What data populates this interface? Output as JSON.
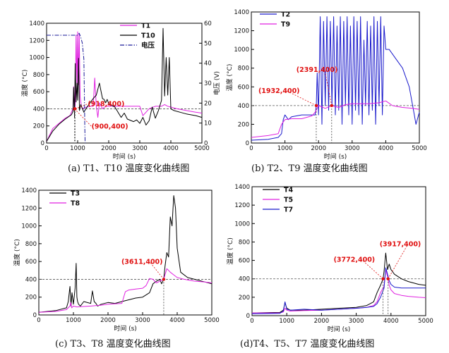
{
  "chart_data": [
    {
      "type": "line",
      "caption": "(a) T1、T10 温度变化曲线图",
      "xlabel": "时间 (s)",
      "ylabel": "温度 (°C)",
      "y2label": "电压 (V)",
      "xlim": [
        0,
        5000
      ],
      "ylim": [
        0,
        1400
      ],
      "y2lim": [
        0,
        60
      ],
      "xticks": [
        "0",
        "1000",
        "2000",
        "3000",
        "4000",
        "5000"
      ],
      "yticks": [
        "0",
        "200",
        "400",
        "600",
        "800",
        "1000",
        "1200",
        "1400"
      ],
      "y2ticks": [
        "0",
        "10",
        "20",
        "30",
        "40",
        "50",
        "60"
      ],
      "threshold": 400,
      "series": [
        {
          "name": "T1",
          "color": "#e020e0",
          "axis": "left",
          "x": [
            0,
            200,
            400,
            600,
            750,
            850,
            870,
            900,
            920,
            950,
            980,
            1000,
            1020,
            1050,
            1080,
            1120,
            1150,
            1200,
            1300,
            1400,
            1500,
            1550,
            1600,
            1650,
            1700,
            1800,
            1900,
            2000,
            2200,
            2500,
            2800,
            3000,
            3100,
            3300,
            3500,
            3700,
            3800,
            3900,
            4000,
            4200,
            4500,
            4800,
            5000
          ],
          "y": [
            20,
            170,
            230,
            290,
            320,
            400,
            660,
            380,
            440,
            1260,
            620,
            1300,
            680,
            1280,
            540,
            430,
            400,
            410,
            420,
            430,
            430,
            760,
            430,
            300,
            470,
            400,
            430,
            430,
            430,
            430,
            430,
            430,
            320,
            400,
            430,
            430,
            450,
            430,
            420,
            400,
            380,
            360,
            350
          ]
        },
        {
          "name": "T10",
          "color": "#000000",
          "axis": "left",
          "x": [
            0,
            200,
            400,
            600,
            800,
            850,
            870,
            900,
            920,
            950,
            980,
            1000,
            1030,
            1060,
            1100,
            1200,
            1300,
            1400,
            1500,
            1600,
            1700,
            1800,
            1850,
            1900,
            1950,
            2000,
            2100,
            2200,
            2400,
            2500,
            2600,
            2800,
            2900,
            3000,
            3100,
            3200,
            3300,
            3400,
            3500,
            3600,
            3700,
            3750,
            3800,
            3850,
            3900,
            3950,
            4000,
            4100,
            4300,
            4500,
            4800,
            5000
          ],
          "y": [
            20,
            140,
            220,
            280,
            330,
            370,
            650,
            300,
            930,
            480,
            700,
            500,
            990,
            380,
            450,
            360,
            420,
            470,
            520,
            560,
            700,
            520,
            510,
            470,
            510,
            460,
            440,
            420,
            300,
            350,
            280,
            250,
            270,
            230,
            300,
            210,
            260,
            420,
            290,
            380,
            500,
            1340,
            550,
            1000,
            560,
            1000,
            400,
            380,
            360,
            340,
            320,
            300
          ]
        },
        {
          "name": "电压",
          "color": "#1a1a99",
          "axis": "right",
          "dash": "dashdot",
          "x": [
            0,
            900,
            1000,
            1050,
            1100,
            1150,
            1200,
            1220,
            1230,
            1240
          ],
          "y": [
            54,
            54,
            54,
            55,
            53,
            50,
            42,
            20,
            8,
            0
          ]
        }
      ],
      "annotations": [
        {
          "text": "(918,400)"
        },
        {
          "text": "(900,400)"
        }
      ],
      "annotation_x": [
        918,
        900
      ]
    },
    {
      "type": "line",
      "caption": "(b) T2、T9 温度变化曲线图",
      "xlabel": "时间 (s)",
      "ylabel": "温度 (°C)",
      "xlim": [
        0,
        5000
      ],
      "ylim": [
        0,
        1400
      ],
      "xticks": [
        "0",
        "1000",
        "2000",
        "3000",
        "4000",
        "5000"
      ],
      "yticks": [
        "0",
        "200",
        "400",
        "600",
        "800",
        "1000",
        "1200",
        "1400"
      ],
      "threshold": 400,
      "series": [
        {
          "name": "T2",
          "color": "#1a1acc",
          "x": [
            0,
            500,
            800,
            900,
            950,
            1000,
            1100,
            1200,
            1500,
            1900,
            1932,
            1960,
            2000,
            2050,
            2100,
            2150,
            2200,
            2250,
            2300,
            2350,
            2400,
            2450,
            2500,
            2550,
            2600,
            2650,
            2700,
            2750,
            2800,
            2850,
            2900,
            2950,
            3000,
            3050,
            3100,
            3150,
            3200,
            3250,
            3300,
            3350,
            3400,
            3450,
            3500,
            3550,
            3600,
            3650,
            3700,
            3750,
            3800,
            3850,
            3900,
            3950,
            4000,
            4100,
            4300,
            4500,
            4700,
            4800,
            4850,
            4900,
            5000
          ],
          "y": [
            30,
            40,
            60,
            100,
            250,
            300,
            250,
            280,
            300,
            300,
            400,
            750,
            300,
            1350,
            200,
            1300,
            400,
            1350,
            350,
            1300,
            400,
            1350,
            300,
            1250,
            350,
            1350,
            200,
            1300,
            400,
            1350,
            300,
            1250,
            200,
            1350,
            350,
            1300,
            300,
            1350,
            200,
            1100,
            400,
            1300,
            300,
            1250,
            350,
            1350,
            200,
            1300,
            400,
            1350,
            300,
            1250,
            1000,
            1000,
            900,
            800,
            600,
            400,
            300,
            200,
            330
          ]
        },
        {
          "name": "T9",
          "color": "#e020e0",
          "x": [
            0,
            500,
            800,
            900,
            1000,
            1200,
            1500,
            1800,
            1900,
            2000,
            2200,
            2391,
            2600,
            2800,
            3000,
            3500,
            3800,
            4000,
            4200,
            4500,
            4800,
            5000
          ],
          "y": [
            60,
            80,
            100,
            200,
            250,
            260,
            260,
            290,
            330,
            400,
            370,
            400,
            380,
            410,
            420,
            420,
            430,
            450,
            400,
            380,
            370,
            360
          ]
        }
      ],
      "annotations": [
        {
          "text": "(2391,400)"
        },
        {
          "text": "(1932,400)"
        }
      ],
      "annotation_x": [
        2391,
        1932
      ]
    },
    {
      "type": "line",
      "caption": "(c) T3、T8 温度变化曲线图",
      "xlabel": "时间 (s)",
      "ylabel": "温度 (°C)",
      "xlim": [
        0,
        5000
      ],
      "ylim": [
        0,
        1400
      ],
      "xticks": [
        "0",
        "1000",
        "2000",
        "3000",
        "4000",
        "5000"
      ],
      "yticks": [
        "0",
        "200",
        "400",
        "600",
        "800",
        "1000",
        "1200",
        "1400"
      ],
      "threshold": 400,
      "series": [
        {
          "name": "T3",
          "color": "#000000",
          "x": [
            0,
            500,
            800,
            850,
            900,
            930,
            960,
            1000,
            1050,
            1080,
            1100,
            1120,
            1150,
            1200,
            1300,
            1500,
            1550,
            1600,
            1650,
            1700,
            1800,
            2000,
            2200,
            2400,
            2600,
            2800,
            3000,
            3200,
            3300,
            3400,
            3500,
            3550,
            3611,
            3650,
            3700,
            3750,
            3800,
            3850,
            3900,
            3950,
            4000,
            4100,
            4300,
            4500,
            4800,
            5000
          ],
          "y": [
            30,
            50,
            80,
            150,
            320,
            100,
            250,
            120,
            300,
            580,
            200,
            150,
            120,
            100,
            150,
            130,
            270,
            150,
            130,
            100,
            120,
            140,
            130,
            150,
            170,
            190,
            200,
            250,
            350,
            380,
            400,
            350,
            400,
            550,
            700,
            650,
            1100,
            1000,
            1340,
            1200,
            750,
            480,
            420,
            400,
            370,
            350
          ]
        },
        {
          "name": "T8",
          "color": "#e020e0",
          "x": [
            0,
            500,
            800,
            900,
            920,
            950,
            1000,
            1100,
            1500,
            1800,
            2000,
            2400,
            2500,
            2600,
            2800,
            3000,
            3100,
            3200,
            3300,
            3400,
            3500,
            3611,
            3700,
            3800,
            3900,
            4000,
            4200,
            4500,
            4800,
            5000
          ],
          "y": [
            30,
            40,
            60,
            100,
            140,
            80,
            100,
            90,
            100,
            110,
            120,
            130,
            260,
            280,
            290,
            300,
            330,
            410,
            400,
            360,
            380,
            400,
            520,
            480,
            450,
            420,
            400,
            380,
            370,
            360
          ]
        }
      ],
      "annotations": [
        {
          "text": "(3611,400)"
        }
      ],
      "annotation_x": [
        3611
      ]
    },
    {
      "type": "line",
      "caption": "(d)T4、T5、T7 温度变化曲线图",
      "xlabel": "时间 (s)",
      "ylabel": "温度 (°C)",
      "xlim": [
        0,
        5000
      ],
      "ylim": [
        0,
        1400
      ],
      "xticks": [
        "0",
        "1000",
        "2000",
        "3000",
        "4000",
        "5000"
      ],
      "yticks": [
        "0",
        "200",
        "400",
        "600",
        "800",
        "1000",
        "1200",
        "1400"
      ],
      "threshold": 400,
      "series": [
        {
          "name": "T4",
          "color": "#000000",
          "x": [
            0,
            800,
            900,
            950,
            1000,
            1100,
            1500,
            2000,
            2500,
            3000,
            3300,
            3500,
            3600,
            3700,
            3772,
            3800,
            3850,
            3900,
            3950,
            4000,
            4100,
            4300,
            4500,
            4800,
            5000
          ],
          "y": [
            30,
            35,
            60,
            140,
            80,
            60,
            60,
            70,
            80,
            90,
            110,
            150,
            250,
            330,
            400,
            480,
            680,
            500,
            560,
            500,
            450,
            400,
            370,
            340,
            330
          ]
        },
        {
          "name": "T5",
          "color": "#e020e0",
          "x": [
            0,
            800,
            900,
            950,
            1000,
            1100,
            1500,
            2000,
            2500,
            3000,
            3300,
            3500,
            3600,
            3700,
            3800,
            3850,
            3917,
            3950,
            4000,
            4100,
            4300,
            4500,
            4800,
            5000
          ],
          "y": [
            30,
            30,
            40,
            80,
            60,
            50,
            55,
            60,
            70,
            80,
            90,
            110,
            150,
            250,
            320,
            500,
            400,
            330,
            280,
            240,
            220,
            210,
            200,
            195
          ]
        },
        {
          "name": "T7",
          "color": "#1a1acc",
          "x": [
            0,
            800,
            900,
            950,
            1000,
            1100,
            1500,
            2000,
            2500,
            3000,
            3300,
            3500,
            3600,
            3700,
            3800,
            3850,
            3917,
            3950,
            4000,
            4100,
            4300,
            4500,
            4800,
            5000
          ],
          "y": [
            20,
            25,
            50,
            150,
            70,
            60,
            70,
            60,
            70,
            80,
            90,
            100,
            130,
            200,
            300,
            520,
            430,
            380,
            340,
            310,
            300,
            300,
            300,
            300
          ]
        }
      ],
      "annotations": [
        {
          "text": "(3772,400)"
        },
        {
          "text": "(3917,400)"
        }
      ],
      "annotation_x": [
        3772,
        3917
      ]
    }
  ]
}
